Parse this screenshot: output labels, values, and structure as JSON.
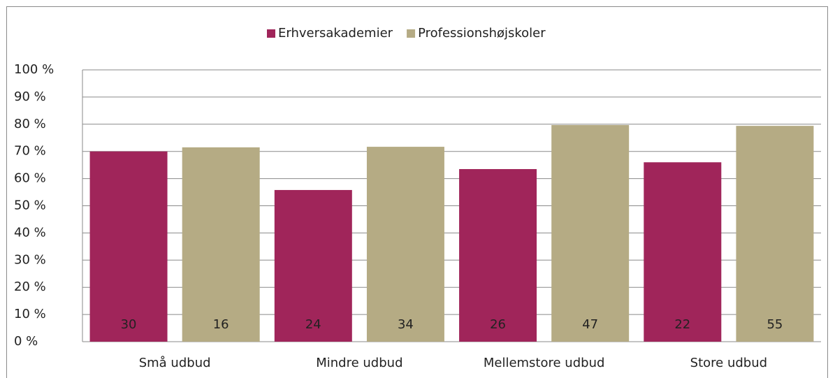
{
  "chart_data": {
    "type": "bar",
    "categories": [
      "Små udbud",
      "Mindre udbud",
      "Mellemstore udbud",
      "Store udbud"
    ],
    "series": [
      {
        "name": "Erhversakademier",
        "color": "#a0255a",
        "values": [
          70,
          55.8,
          63.5,
          66
        ],
        "counts": [
          30,
          24,
          26,
          22
        ]
      },
      {
        "name": "Professionshøjskoler",
        "color": "#b5ab84",
        "values": [
          71.5,
          71.7,
          79.7,
          79.4
        ],
        "counts": [
          16,
          34,
          47,
          55
        ]
      }
    ],
    "ylim": [
      0,
      100
    ],
    "yticks": [
      {
        "value": 0,
        "label": "0 %"
      },
      {
        "value": 10,
        "label": "10 %"
      },
      {
        "value": 20,
        "label": "20 %"
      },
      {
        "value": 30,
        "label": "30 %"
      },
      {
        "value": 40,
        "label": "40 %"
      },
      {
        "value": 50,
        "label": "50 %"
      },
      {
        "value": 60,
        "label": "60 %"
      },
      {
        "value": 70,
        "label": "70 %"
      },
      {
        "value": 80,
        "label": "80 %"
      },
      {
        "value": 90,
        "label": "90 %"
      },
      {
        "value": 100,
        "label": "100 %"
      }
    ],
    "grid": true,
    "legend": "top"
  }
}
